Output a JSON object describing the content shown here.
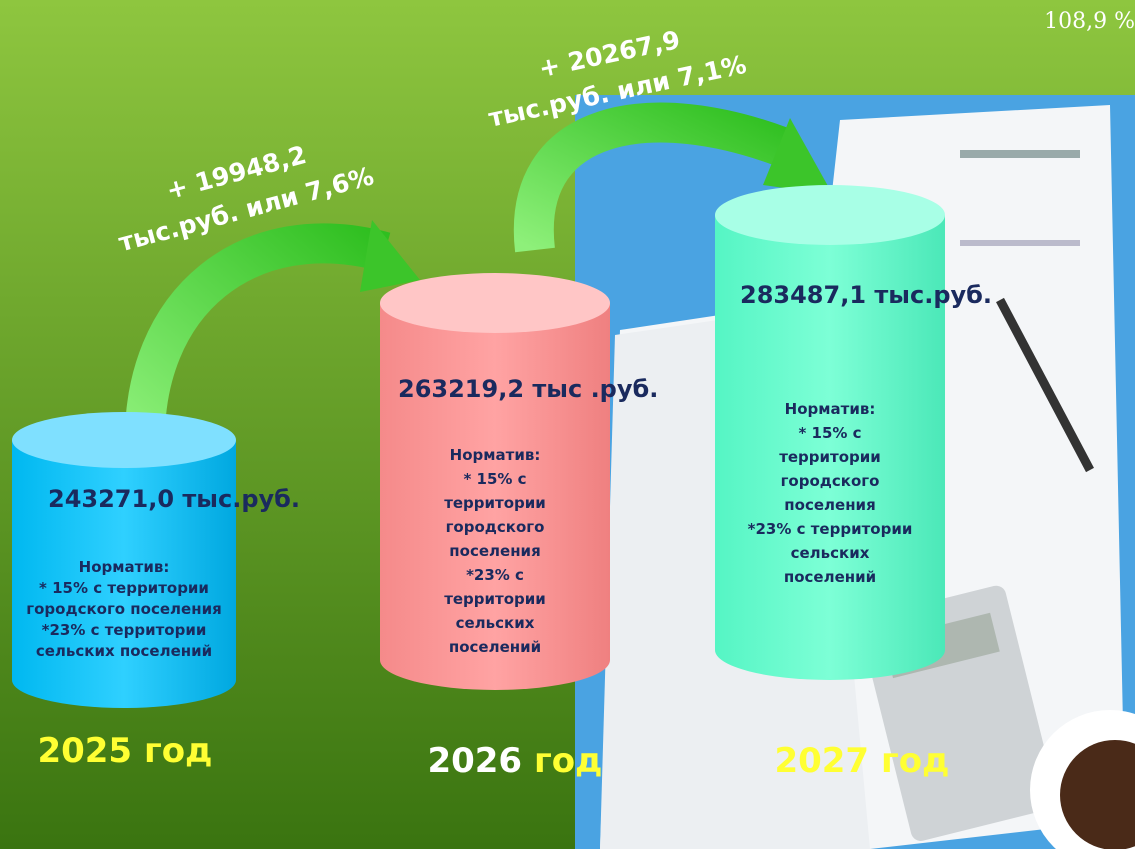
{
  "corner_note": "108,9 %",
  "increments": [
    {
      "line1": "+ 19948,2",
      "line2": "тыс.руб. или 7,6%"
    },
    {
      "line1": "+ 20267,9",
      "line2": "тыс.руб. или 7,1%"
    }
  ],
  "columns": [
    {
      "amount": "243271,0 тыс.руб.",
      "norm_title": "Норматив:",
      "norm_lines": [
        "* 15% с территории",
        "городского поселения",
        "*23% с территории",
        "сельских поселений"
      ],
      "year": "2025",
      "year_word": "год"
    },
    {
      "amount": "263219,2 тыс .руб.",
      "norm_title": "Норматив:",
      "norm_lines": [
        "* 15% с",
        "территории",
        "городского",
        "поселения",
        "*23% с",
        "территории",
        "сельских",
        "поселений"
      ],
      "year": "2026",
      "year_word": "год"
    },
    {
      "amount": "283487,1 тыс.руб.",
      "norm_title": "Норматив:",
      "norm_lines": [
        "* 15% с",
        "территории",
        "городского",
        "поселения",
        "*23% с территории",
        "сельских",
        "поселений"
      ],
      "year": "2027",
      "year_word": "год"
    }
  ]
}
